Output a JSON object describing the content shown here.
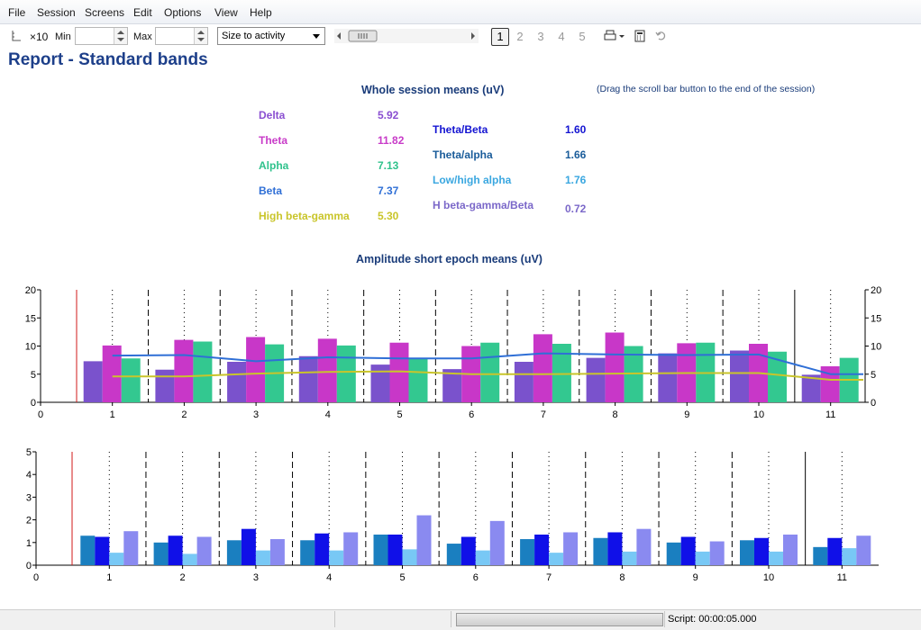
{
  "menu": [
    "File",
    "Session",
    "Screens",
    "Edit",
    "Options",
    "View",
    "Help"
  ],
  "toolbar": {
    "x10_label": "×10",
    "min_label": "Min",
    "max_label": "Max",
    "size_select": "Size to activity",
    "pages": [
      "1",
      "2",
      "3",
      "4",
      "5"
    ],
    "active_page": "1",
    "icons": [
      "axis-icon",
      "scroll-left-icon",
      "scroll-right-icon",
      "print-icon",
      "calculator-icon",
      "undo-icon"
    ]
  },
  "title": "Report - Standard bands",
  "session_heading": "Whole session means (uV)",
  "drag_note": "(Drag the scroll bar button to the end of the session)",
  "band_means": [
    {
      "label": "Delta",
      "value": "5.92",
      "color": "#8a4fd1"
    },
    {
      "label": "Theta",
      "value": "11.82",
      "color": "#c83bc8"
    },
    {
      "label": "Alpha",
      "value": "7.13",
      "color": "#2fc28c"
    },
    {
      "label": "Beta",
      "value": "7.37",
      "color": "#2f6fd6"
    },
    {
      "label": "High beta-gamma",
      "value": "5.30",
      "color": "#c9c52a"
    }
  ],
  "ratio_means": [
    {
      "label": "Theta/Beta",
      "value": "1.60",
      "color": "#1414d2"
    },
    {
      "label": "Theta/alpha",
      "value": "1.66",
      "color": "#1a5c9a"
    },
    {
      "label": "Low/high alpha",
      "value": "1.76",
      "color": "#3aa7e0"
    },
    {
      "label": "H beta-gamma/Beta",
      "value": "0.72",
      "color": "#7b68c9"
    }
  ],
  "epoch_heading": "Amplitude short epoch means (uV)",
  "status": {
    "script": "Script: 00:00:05.000"
  },
  "chart_data": [
    {
      "type": "bar",
      "categories": [
        "1",
        "2",
        "3",
        "4",
        "5",
        "6",
        "7",
        "8",
        "9",
        "10",
        "11"
      ],
      "xticks": [
        "0",
        "1",
        "2",
        "3",
        "4",
        "5",
        "6",
        "7",
        "8",
        "9",
        "10",
        "11"
      ],
      "ylim": [
        0,
        20
      ],
      "yticks": [
        "0",
        "5",
        "10",
        "15",
        "20"
      ],
      "series": [
        {
          "name": "Delta",
          "color": "#7a52cc",
          "values": [
            7.3,
            5.8,
            7.2,
            8.2,
            6.7,
            5.9,
            7.2,
            7.9,
            8.7,
            9.2,
            4.9
          ]
        },
        {
          "name": "Theta",
          "color": "#c837c8",
          "values": [
            10.1,
            11.1,
            11.6,
            11.3,
            10.6,
            10.0,
            12.1,
            12.4,
            10.5,
            10.4,
            6.4
          ]
        },
        {
          "name": "Alpha",
          "color": "#33c890",
          "values": [
            7.8,
            10.8,
            10.3,
            10.1,
            7.9,
            10.6,
            10.4,
            10.0,
            10.6,
            9.0,
            7.9
          ]
        }
      ],
      "lines": [
        {
          "name": "Beta",
          "color": "#2f6fd6",
          "values": [
            8.3,
            8.4,
            7.3,
            8.0,
            7.8,
            7.8,
            8.7,
            8.5,
            8.4,
            8.5,
            5.0
          ]
        },
        {
          "name": "High beta-gamma",
          "color": "#c9c52a",
          "values": [
            4.6,
            4.6,
            5.1,
            5.4,
            5.5,
            5.0,
            5.0,
            5.1,
            5.2,
            5.2,
            4.0
          ]
        }
      ]
    },
    {
      "type": "bar",
      "categories": [
        "1",
        "2",
        "3",
        "4",
        "5",
        "6",
        "7",
        "8",
        "9",
        "10",
        "11"
      ],
      "xticks": [
        "0",
        "1",
        "2",
        "3",
        "4",
        "5",
        "6",
        "7",
        "8",
        "9",
        "10",
        "11"
      ],
      "ylim": [
        0,
        5
      ],
      "yticks": [
        "0",
        "1",
        "2",
        "3",
        "4",
        "5"
      ],
      "series": [
        {
          "name": "Theta/alpha",
          "color": "#1a7fc0",
          "values": [
            1.3,
            1.0,
            1.1,
            1.1,
            1.35,
            0.95,
            1.15,
            1.2,
            1.0,
            1.1,
            0.8
          ]
        },
        {
          "name": "Theta/Beta",
          "color": "#1010e8",
          "values": [
            1.25,
            1.3,
            1.6,
            1.4,
            1.35,
            1.25,
            1.35,
            1.45,
            1.25,
            1.2,
            1.2
          ]
        },
        {
          "name": "Low/high alpha",
          "color": "#78c8f5",
          "values": [
            0.55,
            0.5,
            0.65,
            0.65,
            0.7,
            0.65,
            0.55,
            0.6,
            0.6,
            0.6,
            0.75
          ]
        },
        {
          "name": "H beta-gamma/Beta",
          "color": "#8a8af0",
          "values": [
            1.5,
            1.25,
            1.15,
            1.45,
            2.2,
            1.95,
            1.45,
            1.6,
            1.05,
            1.35,
            1.3
          ]
        }
      ]
    }
  ]
}
